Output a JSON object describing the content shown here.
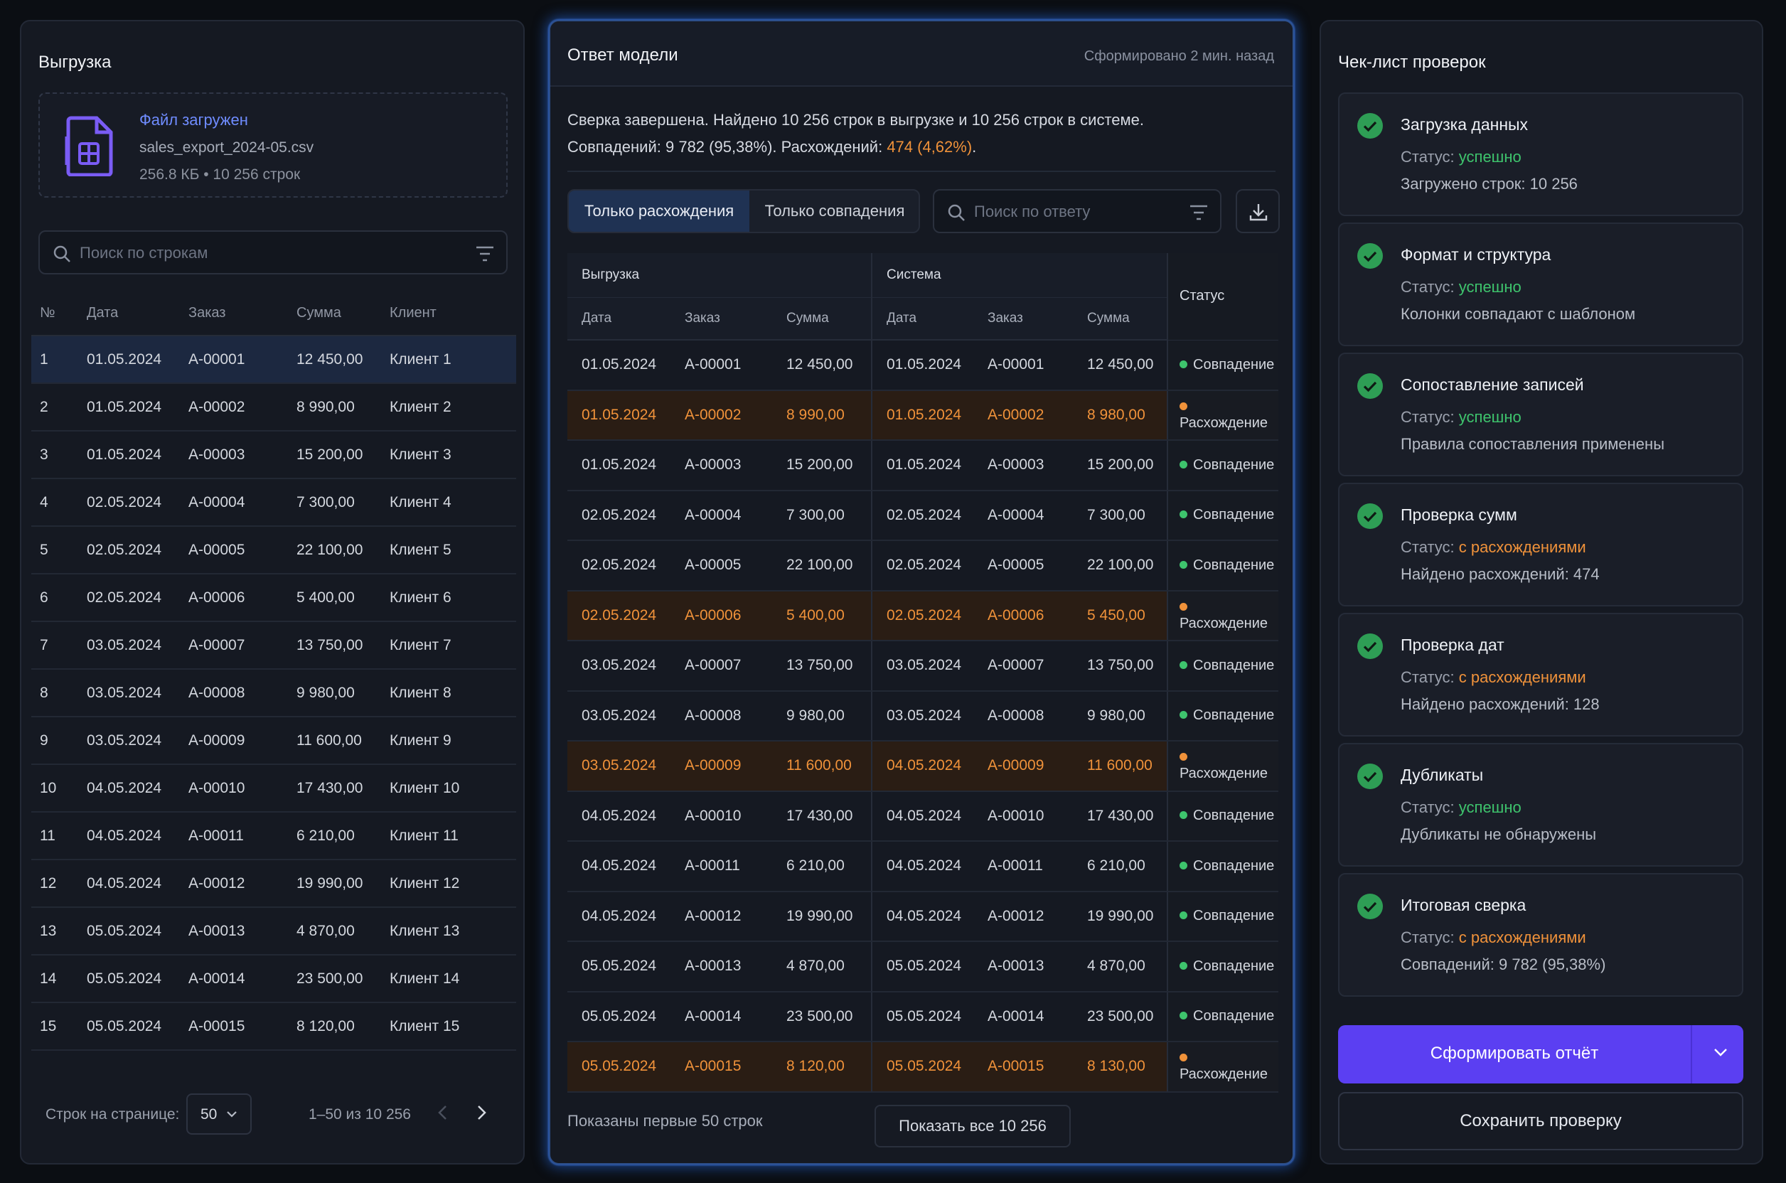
{
  "left": {
    "title": "Выгрузка",
    "file": {
      "status": "Файл загружен",
      "name": "sales_export_2024-05.csv",
      "info": "256.8 КБ • 10 256 строк"
    },
    "search": {
      "placeholder": "Поиск по строкам"
    },
    "columns": [
      "№",
      "Дата",
      "Заказ",
      "Сумма",
      "Клиент"
    ],
    "rows": [
      [
        "1",
        "01.05.2024",
        "A-00001",
        "12 450,00",
        "Клиент 1"
      ],
      [
        "2",
        "01.05.2024",
        "A-00002",
        "8 990,00",
        "Клиент 2"
      ],
      [
        "3",
        "01.05.2024",
        "A-00003",
        "15 200,00",
        "Клиент 3"
      ],
      [
        "4",
        "02.05.2024",
        "A-00004",
        "7 300,00",
        "Клиент 4"
      ],
      [
        "5",
        "02.05.2024",
        "A-00005",
        "22 100,00",
        "Клиент 5"
      ],
      [
        "6",
        "02.05.2024",
        "A-00006",
        "5 400,00",
        "Клиент 6"
      ],
      [
        "7",
        "03.05.2024",
        "A-00007",
        "13 750,00",
        "Клиент 7"
      ],
      [
        "8",
        "03.05.2024",
        "A-00008",
        "9 980,00",
        "Клиент 8"
      ],
      [
        "9",
        "03.05.2024",
        "A-00009",
        "11 600,00",
        "Клиент 9"
      ],
      [
        "10",
        "04.05.2024",
        "A-00010",
        "17 430,00",
        "Клиент 10"
      ],
      [
        "11",
        "04.05.2024",
        "A-00011",
        "6 210,00",
        "Клиент 11"
      ],
      [
        "12",
        "04.05.2024",
        "A-00012",
        "19 990,00",
        "Клиент 12"
      ],
      [
        "13",
        "05.05.2024",
        "A-00013",
        "4 870,00",
        "Клиент 13"
      ],
      [
        "14",
        "05.05.2024",
        "A-00014",
        "23 500,00",
        "Клиент 14"
      ],
      [
        "15",
        "05.05.2024",
        "A-00015",
        "8 120,00",
        "Клиент 15"
      ]
    ],
    "pager": {
      "label": "Строк на странице:",
      "page_size": "50",
      "range": "1–50 из 10 256"
    }
  },
  "middle": {
    "title": "Ответ модели",
    "meta": "Сформировано 2 мин. назад",
    "summary_line1": "Сверка завершена. Найдено 10 256 строк в выгрузке и 10 256 строк в системе.",
    "summary_line2_prefix": "Совпадений: 9 782 (95,38%). Расхождений: ",
    "summary_line2_accent": "474 (4,62%)",
    "summary_line2_suffix": ".",
    "tabs": {
      "active": "Только расхождения",
      "inactive": "Только совпадения"
    },
    "search": {
      "placeholder": "Поиск по ответу"
    },
    "groups": {
      "export": "Выгрузка",
      "system": "Система",
      "status": "Статус"
    },
    "columns": [
      "Дата",
      "Заказ",
      "Сумма",
      "Дата",
      "Заказ",
      "Сумма"
    ],
    "rows": [
      {
        "e": [
          "01.05.2024",
          "A-00001",
          "12 450,00"
        ],
        "s": [
          "01.05.2024",
          "A-00001",
          "12 450,00"
        ],
        "status": "Совпадение",
        "diff": false
      },
      {
        "e": [
          "01.05.2024",
          "A-00002",
          "8 990,00"
        ],
        "s": [
          "01.05.2024",
          "A-00002",
          "8 980,00"
        ],
        "status": "Расхождение",
        "diff": true
      },
      {
        "e": [
          "01.05.2024",
          "A-00003",
          "15 200,00"
        ],
        "s": [
          "01.05.2024",
          "A-00003",
          "15 200,00"
        ],
        "status": "Совпадение",
        "diff": false
      },
      {
        "e": [
          "02.05.2024",
          "A-00004",
          "7 300,00"
        ],
        "s": [
          "02.05.2024",
          "A-00004",
          "7 300,00"
        ],
        "status": "Совпадение",
        "diff": false
      },
      {
        "e": [
          "02.05.2024",
          "A-00005",
          "22 100,00"
        ],
        "s": [
          "02.05.2024",
          "A-00005",
          "22 100,00"
        ],
        "status": "Совпадение",
        "diff": false
      },
      {
        "e": [
          "02.05.2024",
          "A-00006",
          "5 400,00"
        ],
        "s": [
          "02.05.2024",
          "A-00006",
          "5 450,00"
        ],
        "status": "Расхождение",
        "diff": true
      },
      {
        "e": [
          "03.05.2024",
          "A-00007",
          "13 750,00"
        ],
        "s": [
          "03.05.2024",
          "A-00007",
          "13 750,00"
        ],
        "status": "Совпадение",
        "diff": false
      },
      {
        "e": [
          "03.05.2024",
          "A-00008",
          "9 980,00"
        ],
        "s": [
          "03.05.2024",
          "A-00008",
          "9 980,00"
        ],
        "status": "Совпадение",
        "diff": false
      },
      {
        "e": [
          "03.05.2024",
          "A-00009",
          "11 600,00"
        ],
        "s": [
          "04.05.2024",
          "A-00009",
          "11 600,00"
        ],
        "status": "Расхождение",
        "diff": true
      },
      {
        "e": [
          "04.05.2024",
          "A-00010",
          "17 430,00"
        ],
        "s": [
          "04.05.2024",
          "A-00010",
          "17 430,00"
        ],
        "status": "Совпадение",
        "diff": false
      },
      {
        "e": [
          "04.05.2024",
          "A-00011",
          "6 210,00"
        ],
        "s": [
          "04.05.2024",
          "A-00011",
          "6 210,00"
        ],
        "status": "Совпадение",
        "diff": false
      },
      {
        "e": [
          "04.05.2024",
          "A-00012",
          "19 990,00"
        ],
        "s": [
          "04.05.2024",
          "A-00012",
          "19 990,00"
        ],
        "status": "Совпадение",
        "diff": false
      },
      {
        "e": [
          "05.05.2024",
          "A-00013",
          "4 870,00"
        ],
        "s": [
          "05.05.2024",
          "A-00013",
          "4 870,00"
        ],
        "status": "Совпадение",
        "diff": false
      },
      {
        "e": [
          "05.05.2024",
          "A-00014",
          "23 500,00"
        ],
        "s": [
          "05.05.2024",
          "A-00014",
          "23 500,00"
        ],
        "status": "Совпадение",
        "diff": false
      },
      {
        "e": [
          "05.05.2024",
          "A-00015",
          "8 120,00"
        ],
        "s": [
          "05.05.2024",
          "A-00015",
          "8 130,00"
        ],
        "status": "Расхождение",
        "diff": true
      }
    ],
    "footer": "Показаны первые 50 строк",
    "show_all": "Показать все 10 256"
  },
  "right": {
    "title": "Чек-лист проверок",
    "status_label": "Статус: ",
    "items": [
      {
        "title": "Загрузка данных",
        "status": "успешно",
        "ok": true,
        "note": "Загружено строк: 10 256"
      },
      {
        "title": "Формат и структура",
        "status": "успешно",
        "ok": true,
        "note": "Колонки совпадают с шаблоном"
      },
      {
        "title": "Сопоставление записей",
        "status": "успешно",
        "ok": true,
        "note": "Правила сопоставления применены"
      },
      {
        "title": "Проверка сумм",
        "status": "с расхождениями",
        "ok": false,
        "note": "Найдено расхождений: 474"
      },
      {
        "title": "Проверка дат",
        "status": "с расхождениями",
        "ok": false,
        "note": "Найдено расхождений: 128"
      },
      {
        "title": "Дубликаты",
        "status": "успешно",
        "ok": true,
        "note": "Дубликаты не обнаружены"
      },
      {
        "title": "Итоговая сверка",
        "status": "с расхождениями",
        "ok": false,
        "note": "Совпадений: 9 782 (95,38%)"
      }
    ],
    "primary_button": "Сформировать отчёт",
    "secondary_button": "Сохранить проверку"
  },
  "colors": {
    "accent": "#5b3ff2",
    "success": "#3ec46d",
    "warning": "#f0923a",
    "link": "#6f8cff"
  }
}
